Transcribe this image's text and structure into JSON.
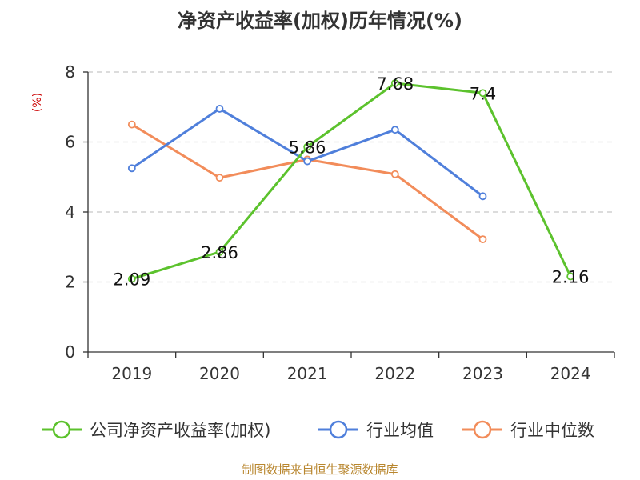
{
  "chart_data": {
    "type": "line",
    "title": "净资产收益率(加权)历年情况(%)",
    "ylabel": "(%)",
    "xlabel": "",
    "categories": [
      "2019",
      "2020",
      "2021",
      "2022",
      "2023",
      "2024"
    ],
    "ylim": [
      0,
      8
    ],
    "yticks": [
      0,
      2,
      4,
      6,
      8
    ],
    "grid": true,
    "legend_position": "bottom",
    "series": [
      {
        "name": "公司净资产收益率(加权)",
        "color": "#5cc22d",
        "values": [
          2.09,
          2.86,
          5.86,
          7.68,
          7.4,
          2.16
        ],
        "labels": [
          "2.09",
          "2.86",
          "5.86",
          "7.68",
          "7.4",
          "2.16"
        ]
      },
      {
        "name": "行业均值",
        "color": "#4f7fdb",
        "values": [
          5.25,
          6.95,
          5.45,
          6.35,
          4.45,
          null
        ]
      },
      {
        "name": "行业中位数",
        "color": "#f28c5a",
        "values": [
          6.5,
          4.98,
          5.5,
          5.08,
          3.22,
          null
        ]
      }
    ]
  },
  "source": "制图数据来自恒生聚源数据库"
}
